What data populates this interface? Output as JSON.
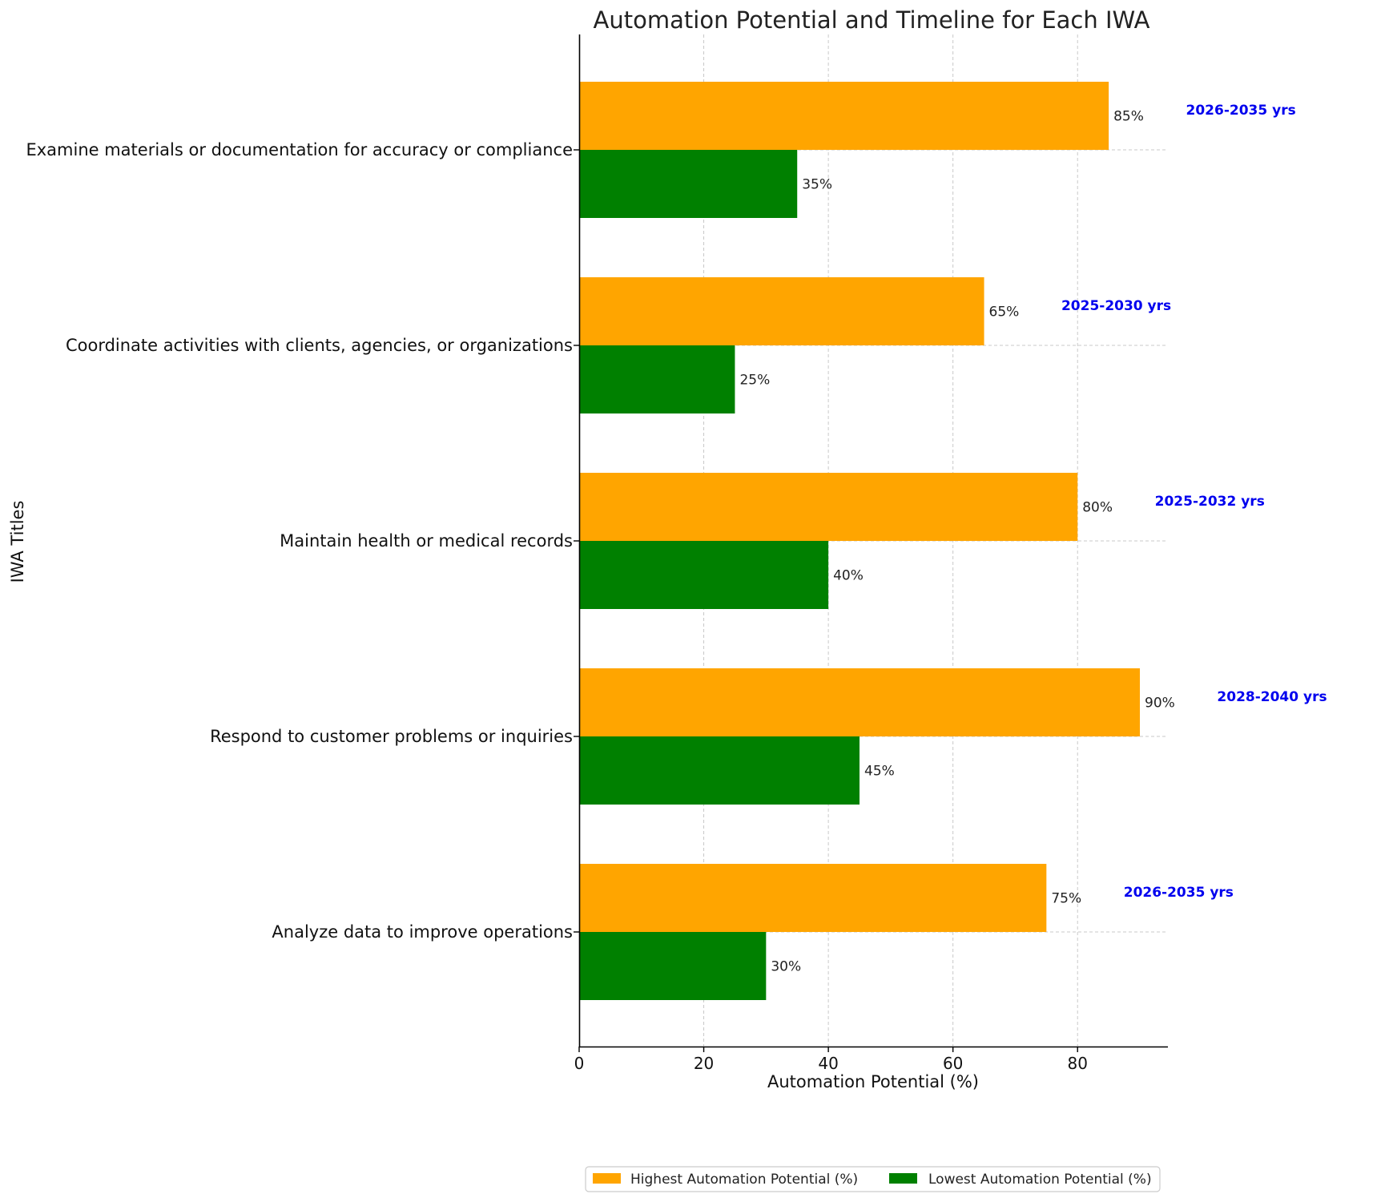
{
  "chart_data": {
    "type": "bar",
    "orientation": "horizontal",
    "title": "Automation Potential and Timeline for Each IWA",
    "xlabel": "Automation Potential (%)",
    "ylabel": "IWA Titles",
    "xlim": [
      0,
      94.5
    ],
    "xticks": [
      "0",
      "20",
      "40",
      "60",
      "80"
    ],
    "categories": [
      "Examine materials or documentation for accuracy or compliance",
      "Coordinate activities with clients, agencies, or organizations",
      "Maintain health or medical records",
      "Respond to customer problems or inquiries",
      "Analyze data to improve operations"
    ],
    "series": [
      {
        "name": "Highest Automation Potential (%)",
        "color": "#ffa500",
        "values": [
          85,
          65,
          80,
          90,
          75
        ],
        "labels": [
          "85%",
          "65%",
          "80%",
          "90%",
          "75%"
        ]
      },
      {
        "name": "Lowest Automation Potential (%)",
        "color": "#008000",
        "values": [
          35,
          25,
          40,
          45,
          30
        ],
        "labels": [
          "35%",
          "25%",
          "40%",
          "45%",
          "30%"
        ]
      }
    ],
    "timelines": [
      "2026-2035 yrs",
      "2025-2030 yrs",
      "2025-2032 yrs",
      "2028-2040 yrs",
      "2026-2035 yrs"
    ],
    "timeline_color": "#0000ee",
    "grid": true,
    "legend": "bottom-center"
  }
}
